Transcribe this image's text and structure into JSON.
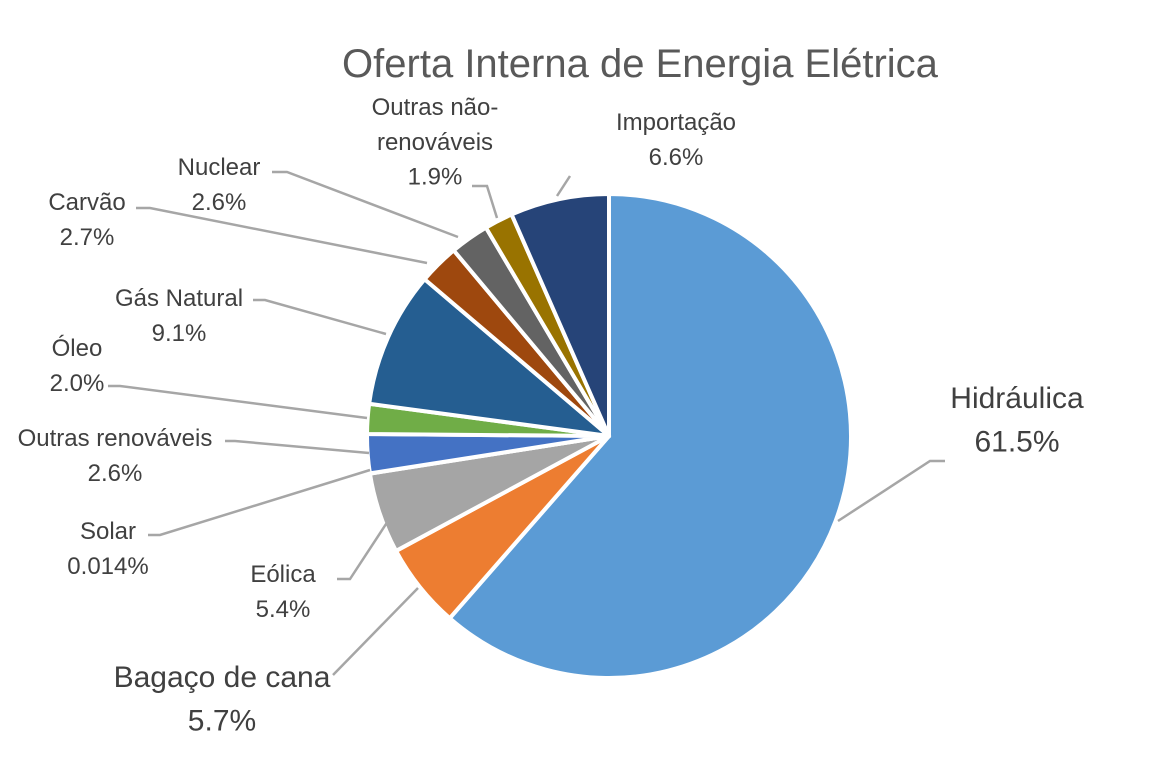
{
  "chart_data": {
    "type": "pie",
    "title": "Oferta Interna de Energia Elétrica",
    "slices": [
      {
        "name": "Hidráulica",
        "value": 61.5,
        "label": "61.5%",
        "color": "#5b9bd5"
      },
      {
        "name": "Bagaço de cana",
        "value": 5.7,
        "label": "5.7%",
        "color": "#ed7d31"
      },
      {
        "name": "Eólica",
        "value": 5.4,
        "label": "5.4%",
        "color": "#a5a5a5"
      },
      {
        "name": "Solar",
        "value": 0.014,
        "label": "0.014%",
        "color": "#ffc000"
      },
      {
        "name": "Outras renováveis",
        "value": 2.6,
        "label": "2.6%",
        "color": "#4472c4"
      },
      {
        "name": "Óleo",
        "value": 2.0,
        "label": "2.0%",
        "color": "#70ad47"
      },
      {
        "name": "Gás Natural",
        "value": 9.1,
        "label": "9.1%",
        "color": "#255e91"
      },
      {
        "name": "Carvão",
        "value": 2.7,
        "label": "2.7%",
        "color": "#9e480e"
      },
      {
        "name": "Nuclear",
        "value": 2.6,
        "label": "2.6%",
        "color": "#636363"
      },
      {
        "name": "Outras não-renováveis",
        "value": 1.9,
        "label": "1.9%",
        "color": "#997300"
      },
      {
        "name": "Importação",
        "value": 6.6,
        "label": "6.6%",
        "color": "#264478"
      }
    ]
  }
}
